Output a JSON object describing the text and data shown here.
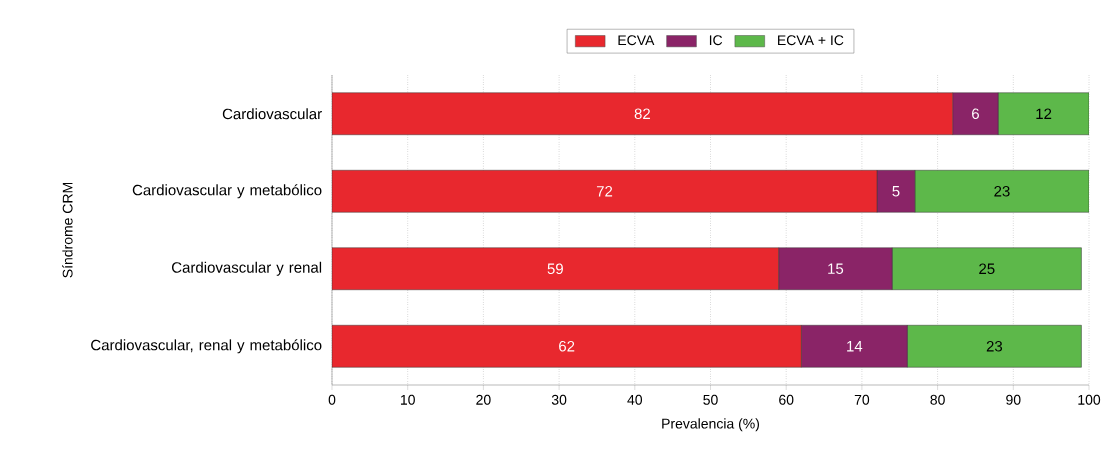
{
  "chart_data": {
    "type": "bar",
    "orientation": "horizontal",
    "stacked": true,
    "data_labels": true,
    "categories": [
      "Cardiovascular",
      "Cardiovascular y metabólico",
      "Cardiovascular y renal",
      "Cardiovascular, renal y metabólico"
    ],
    "series": [
      {
        "name": "ECVA",
        "color": "#e8282e",
        "values": [
          82,
          72,
          59,
          62
        ]
      },
      {
        "name": "IC",
        "color": "#8a2467",
        "values": [
          6,
          5,
          15,
          14
        ]
      },
      {
        "name": "ECVA + IC",
        "color": "#5db84a",
        "values": [
          12,
          23,
          25,
          23
        ]
      }
    ],
    "xlabel": "Prevalencia (%)",
    "ylabel": "Síndrome CRM",
    "xlim": [
      0,
      100
    ],
    "xticks": [
      0,
      10,
      20,
      30,
      40,
      50,
      60,
      70,
      80,
      90,
      100
    ],
    "grid": "x",
    "legend": "top"
  }
}
